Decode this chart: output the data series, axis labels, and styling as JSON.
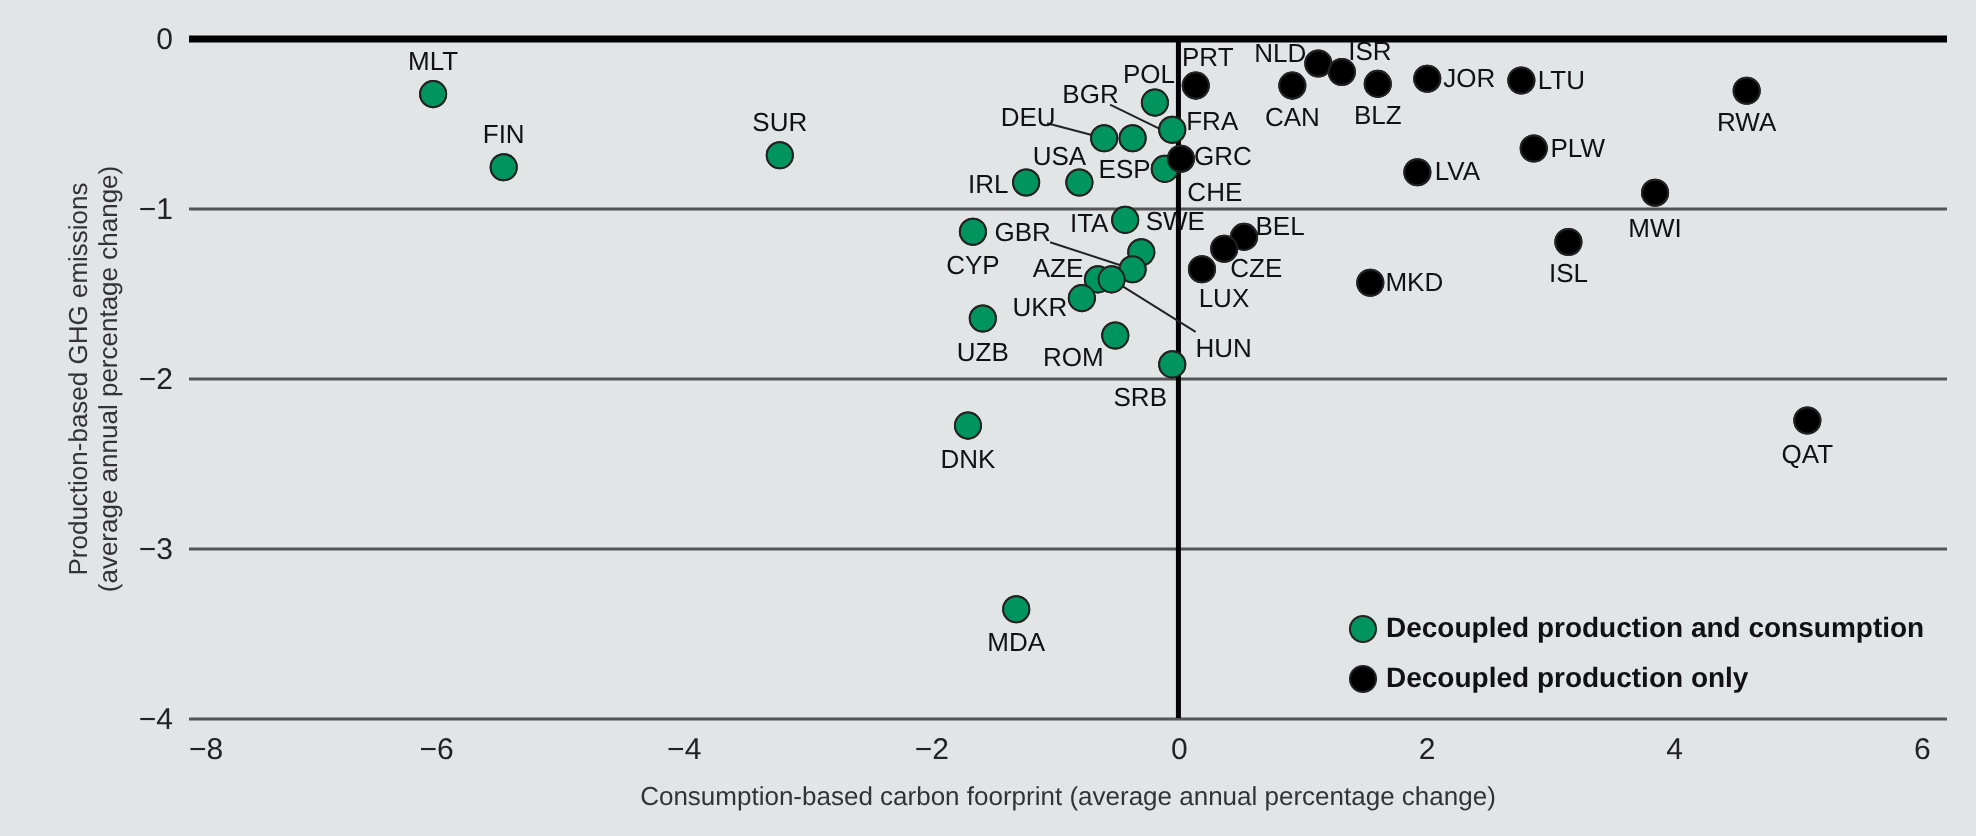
{
  "chart_data": {
    "type": "scatter",
    "xlabel": "Consumption-based carbon foorprint (average annual percentage change)",
    "ylabel": [
      "Production-based GHG emissions",
      "(average annual percentage change)"
    ],
    "xlim": [
      -8,
      6.2
    ],
    "xticks": [
      -8,
      -6,
      -4,
      -2,
      0,
      2,
      4,
      6
    ],
    "ylim": [
      -4,
      0
    ],
    "yticks": [
      -4,
      -3,
      -2,
      -1,
      0
    ],
    "grid": "y",
    "legend": "bottom right",
    "marker": "circle",
    "ref_lines": [
      {
        "axis": "x",
        "value": 0,
        "color": "#000000"
      }
    ],
    "series": [
      {
        "name": "Decoupled production and consumption",
        "color": "#00945e",
        "x": [
          -6.02,
          -5.45,
          -3.22,
          -0.19,
          -0.08,
          -0.05,
          -0.6,
          -0.8,
          -0.37,
          -1.23,
          -0.11,
          -0.43,
          -1.66,
          -0.3,
          -0.37,
          -0.65,
          -0.54,
          -0.78,
          -1.58,
          -0.51,
          -0.05,
          -1.7,
          -1.31
        ],
        "values": [
          -0.33,
          -0.76,
          -0.69,
          -0.38,
          null,
          -0.54,
          -0.59,
          -0.85,
          -0.59,
          -0.85,
          -0.77,
          -1.07,
          -1.14,
          -1.26,
          -1.36,
          -1.42,
          -1.42,
          -1.53,
          -1.65,
          -1.75,
          -1.92,
          -2.28,
          -3.36
        ]
      },
      {
        "name": "Decoupled production only",
        "color": "#000000",
        "x": [
          0.02,
          0.14,
          1.13,
          1.32,
          0.92,
          1.61,
          2.01,
          2.77,
          4.59,
          2.87,
          1.93,
          3.85,
          0.53,
          0.37,
          0.19,
          1.55,
          3.15,
          5.08
        ],
        "values": [
          -0.71,
          -0.28,
          -0.15,
          -0.2,
          -0.28,
          -0.27,
          -0.24,
          -0.25,
          -0.31,
          -0.65,
          -0.79,
          -0.91,
          -1.17,
          -1.24,
          -1.36,
          -1.44,
          -1.2,
          -2.25
        ]
      }
    ],
    "annotations": [
      {
        "text": "MLT",
        "x": -6.02,
        "y": -0.33
      },
      {
        "text": "FIN",
        "x": -5.45,
        "y": -0.76
      },
      {
        "text": "SUR",
        "x": -3.22,
        "y": -0.69
      },
      {
        "text": "POL",
        "x": -0.19,
        "y": -0.38
      },
      {
        "text": "BGR",
        "x": -0.08,
        "y": -0.56
      },
      {
        "text": "FRA",
        "x": -0.05,
        "y": -0.54
      },
      {
        "text": "DEU",
        "x": -0.6,
        "y": -0.59
      },
      {
        "text": "USA",
        "x": -0.8,
        "y": -0.85
      },
      {
        "text": "ESP",
        "x": -0.37,
        "y": -0.59
      },
      {
        "text": "IRL",
        "x": -1.23,
        "y": -0.85
      },
      {
        "text": "CHE",
        "x": -0.11,
        "y": -0.77
      },
      {
        "text": "ITA",
        "x": -0.43,
        "y": -1.07
      },
      {
        "text": "CYP",
        "x": -1.66,
        "y": -1.14
      },
      {
        "text": "SWE",
        "x": -0.3,
        "y": -1.26
      },
      {
        "text": "GBR",
        "x": -0.37,
        "y": -1.36
      },
      {
        "text": "AZE",
        "x": -0.65,
        "y": -1.42
      },
      {
        "text": "HUN",
        "x": -0.54,
        "y": -1.42
      },
      {
        "text": "UKR",
        "x": -0.78,
        "y": -1.53
      },
      {
        "text": "UZB",
        "x": -1.58,
        "y": -1.65
      },
      {
        "text": "ROM",
        "x": -0.51,
        "y": -1.75
      },
      {
        "text": "SRB",
        "x": -0.05,
        "y": -1.92
      },
      {
        "text": "DNK",
        "x": -1.7,
        "y": -2.28
      },
      {
        "text": "MDA",
        "x": -1.31,
        "y": -3.36
      },
      {
        "text": "GRC",
        "x": 0.02,
        "y": -0.71
      },
      {
        "text": "PRT",
        "x": 0.14,
        "y": -0.28
      },
      {
        "text": "NLD",
        "x": 1.13,
        "y": -0.15
      },
      {
        "text": "ISR",
        "x": 1.32,
        "y": -0.2
      },
      {
        "text": "CAN",
        "x": 0.92,
        "y": -0.28
      },
      {
        "text": "BLZ",
        "x": 1.61,
        "y": -0.27
      },
      {
        "text": "JOR",
        "x": 2.01,
        "y": -0.24
      },
      {
        "text": "LTU",
        "x": 2.77,
        "y": -0.25
      },
      {
        "text": "RWA",
        "x": 4.59,
        "y": -0.31
      },
      {
        "text": "PLW",
        "x": 2.87,
        "y": -0.65
      },
      {
        "text": "LVA",
        "x": 1.93,
        "y": -0.79
      },
      {
        "text": "MWI",
        "x": 3.85,
        "y": -0.91
      },
      {
        "text": "BEL",
        "x": 0.53,
        "y": -1.17
      },
      {
        "text": "CZE",
        "x": 0.37,
        "y": -1.24
      },
      {
        "text": "LUX",
        "x": 0.19,
        "y": -1.36
      },
      {
        "text": "MKD",
        "x": 1.55,
        "y": -1.44
      },
      {
        "text": "ISL",
        "x": 3.15,
        "y": -1.2
      },
      {
        "text": "QAT",
        "x": 5.08,
        "y": -2.25
      }
    ]
  }
}
